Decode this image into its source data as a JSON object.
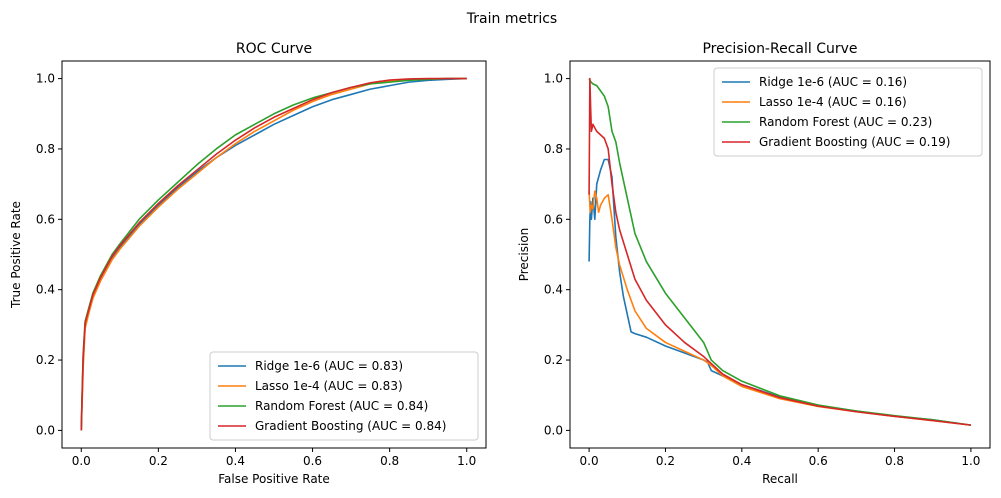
{
  "figure": {
    "suptitle": "Train metrics"
  },
  "colors": {
    "ridge": "#1f77b4",
    "lasso": "#ff7f0e",
    "rf": "#2ca02c",
    "gb": "#d62728"
  },
  "chart_data": [
    {
      "type": "line",
      "title": "ROC Curve",
      "xlabel": "False Positive Rate",
      "ylabel": "True Positive Rate",
      "xlim": [
        -0.05,
        1.05
      ],
      "ylim": [
        -0.05,
        1.05
      ],
      "xticks": [
        "0.0",
        "0.2",
        "0.4",
        "0.6",
        "0.8",
        "1.0"
      ],
      "yticks": [
        "0.0",
        "0.2",
        "0.4",
        "0.6",
        "0.8",
        "1.0"
      ],
      "grid": false,
      "legend_loc": "lower right",
      "series": [
        {
          "name": "Ridge 1e-6 (AUC = 0.83)",
          "color": "#1f77b4",
          "x": [
            0,
            0.002,
            0.005,
            0.01,
            0.02,
            0.03,
            0.05,
            0.08,
            0.1,
            0.15,
            0.2,
            0.25,
            0.3,
            0.35,
            0.4,
            0.45,
            0.5,
            0.55,
            0.6,
            0.65,
            0.7,
            0.75,
            0.8,
            0.85,
            0.9,
            0.95,
            1.0
          ],
          "y": [
            0,
            0.08,
            0.2,
            0.3,
            0.34,
            0.38,
            0.43,
            0.49,
            0.52,
            0.585,
            0.64,
            0.69,
            0.735,
            0.775,
            0.81,
            0.84,
            0.87,
            0.895,
            0.92,
            0.94,
            0.955,
            0.97,
            0.98,
            0.99,
            0.995,
            0.998,
            1.0
          ]
        },
        {
          "name": "Lasso 1e-4 (AUC = 0.83)",
          "color": "#ff7f0e",
          "x": [
            0,
            0.002,
            0.005,
            0.01,
            0.02,
            0.03,
            0.05,
            0.08,
            0.1,
            0.15,
            0.2,
            0.25,
            0.3,
            0.35,
            0.4,
            0.45,
            0.5,
            0.55,
            0.6,
            0.65,
            0.7,
            0.75,
            0.8,
            0.85,
            0.9,
            0.95,
            1.0
          ],
          "y": [
            0,
            0.07,
            0.18,
            0.29,
            0.335,
            0.375,
            0.425,
            0.485,
            0.515,
            0.58,
            0.635,
            0.685,
            0.73,
            0.775,
            0.815,
            0.85,
            0.88,
            0.91,
            0.935,
            0.955,
            0.97,
            0.985,
            0.993,
            0.997,
            0.999,
            1.0,
            1.0
          ]
        },
        {
          "name": "Random Forest (AUC = 0.84)",
          "color": "#2ca02c",
          "x": [
            0,
            0.002,
            0.005,
            0.01,
            0.02,
            0.03,
            0.05,
            0.08,
            0.1,
            0.15,
            0.2,
            0.25,
            0.3,
            0.35,
            0.4,
            0.45,
            0.5,
            0.55,
            0.6,
            0.65,
            0.7,
            0.75,
            0.8,
            0.85,
            0.9,
            0.95,
            1.0
          ],
          "y": [
            0,
            0.1,
            0.22,
            0.31,
            0.35,
            0.39,
            0.44,
            0.5,
            0.53,
            0.6,
            0.655,
            0.705,
            0.755,
            0.8,
            0.84,
            0.87,
            0.9,
            0.925,
            0.945,
            0.96,
            0.975,
            0.985,
            0.99,
            0.995,
            0.998,
            1.0,
            1.0
          ]
        },
        {
          "name": "Gradient Boosting (AUC = 0.84)",
          "color": "#d62728",
          "x": [
            0,
            0.002,
            0.005,
            0.01,
            0.02,
            0.03,
            0.05,
            0.08,
            0.1,
            0.15,
            0.2,
            0.25,
            0.3,
            0.35,
            0.4,
            0.45,
            0.5,
            0.55,
            0.6,
            0.65,
            0.7,
            0.75,
            0.8,
            0.85,
            0.9,
            0.95,
            1.0
          ],
          "y": [
            0,
            0.09,
            0.21,
            0.305,
            0.345,
            0.385,
            0.435,
            0.495,
            0.525,
            0.59,
            0.645,
            0.695,
            0.74,
            0.785,
            0.825,
            0.86,
            0.89,
            0.915,
            0.94,
            0.96,
            0.975,
            0.988,
            0.996,
            0.999,
            1.0,
            1.0,
            1.0
          ]
        }
      ]
    },
    {
      "type": "line",
      "title": "Precision-Recall Curve",
      "xlabel": "Recall",
      "ylabel": "Precision",
      "xlim": [
        -0.05,
        1.05
      ],
      "ylim": [
        -0.05,
        1.05
      ],
      "xticks": [
        "0.0",
        "0.2",
        "0.4",
        "0.6",
        "0.8",
        "1.0"
      ],
      "yticks": [
        "0.0",
        "0.2",
        "0.4",
        "0.6",
        "0.8",
        "1.0"
      ],
      "grid": false,
      "legend_loc": "upper right",
      "series": [
        {
          "name": "Ridge 1e-6 (AUC = 0.16)",
          "color": "#1f77b4",
          "x": [
            0.0,
            0.002,
            0.004,
            0.006,
            0.01,
            0.015,
            0.02,
            0.03,
            0.04,
            0.05,
            0.06,
            0.07,
            0.08,
            0.09,
            0.1,
            0.11,
            0.12,
            0.15,
            0.2,
            0.25,
            0.3,
            0.31,
            0.32,
            0.35,
            0.4,
            0.5,
            0.6,
            0.7,
            0.8,
            0.9,
            1.0
          ],
          "y": [
            0.48,
            0.6,
            0.65,
            0.6,
            0.66,
            0.6,
            0.7,
            0.74,
            0.77,
            0.77,
            0.72,
            0.55,
            0.45,
            0.38,
            0.33,
            0.28,
            0.275,
            0.265,
            0.24,
            0.22,
            0.2,
            0.195,
            0.17,
            0.155,
            0.13,
            0.095,
            0.07,
            0.055,
            0.04,
            0.03,
            0.015
          ]
        },
        {
          "name": "Lasso 1e-4 (AUC = 0.16)",
          "color": "#ff7f0e",
          "x": [
            0.0,
            0.003,
            0.006,
            0.01,
            0.015,
            0.02,
            0.025,
            0.03,
            0.04,
            0.05,
            0.06,
            0.07,
            0.08,
            0.1,
            0.12,
            0.15,
            0.2,
            0.25,
            0.3,
            0.32,
            0.35,
            0.4,
            0.5,
            0.6,
            0.7,
            0.8,
            0.9,
            1.0
          ],
          "y": [
            0.68,
            0.62,
            0.64,
            0.63,
            0.68,
            0.66,
            0.62,
            0.64,
            0.66,
            0.67,
            0.6,
            0.52,
            0.47,
            0.4,
            0.34,
            0.29,
            0.25,
            0.225,
            0.2,
            0.185,
            0.155,
            0.125,
            0.09,
            0.068,
            0.053,
            0.04,
            0.028,
            0.015
          ]
        },
        {
          "name": "Random Forest (AUC = 0.23)",
          "color": "#2ca02c",
          "x": [
            0.0,
            0.005,
            0.01,
            0.02,
            0.03,
            0.04,
            0.05,
            0.06,
            0.07,
            0.08,
            0.1,
            0.12,
            0.15,
            0.2,
            0.25,
            0.3,
            0.32,
            0.35,
            0.4,
            0.5,
            0.6,
            0.7,
            0.8,
            0.9,
            1.0
          ],
          "y": [
            1.0,
            0.99,
            0.985,
            0.98,
            0.965,
            0.95,
            0.92,
            0.85,
            0.82,
            0.76,
            0.66,
            0.56,
            0.48,
            0.39,
            0.32,
            0.25,
            0.2,
            0.17,
            0.14,
            0.098,
            0.072,
            0.055,
            0.042,
            0.03,
            0.015
          ]
        },
        {
          "name": "Gradient Boosting (AUC = 0.19)",
          "color": "#d62728",
          "x": [
            0.0,
            0.002,
            0.004,
            0.006,
            0.01,
            0.015,
            0.02,
            0.03,
            0.04,
            0.05,
            0.06,
            0.07,
            0.08,
            0.1,
            0.12,
            0.15,
            0.2,
            0.25,
            0.3,
            0.32,
            0.35,
            0.4,
            0.5,
            0.6,
            0.7,
            0.8,
            0.9,
            1.0
          ],
          "y": [
            0.67,
            1.0,
            0.92,
            0.85,
            0.87,
            0.86,
            0.85,
            0.84,
            0.83,
            0.8,
            0.7,
            0.62,
            0.57,
            0.5,
            0.43,
            0.37,
            0.3,
            0.25,
            0.21,
            0.19,
            0.16,
            0.13,
            0.093,
            0.069,
            0.053,
            0.04,
            0.028,
            0.015
          ]
        }
      ]
    }
  ]
}
